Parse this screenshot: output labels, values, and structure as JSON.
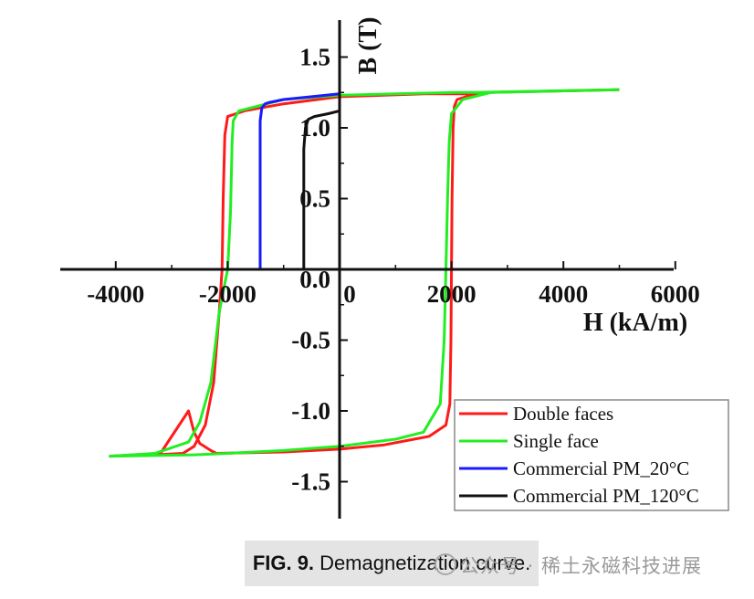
{
  "chart_data": {
    "type": "line",
    "xlabel": "H (kA/m)",
    "ylabel": "B (T)",
    "xlim": [
      -5000,
      6000
    ],
    "ylim": [
      -1.75,
      1.75
    ],
    "x_ticks": [
      "-4000",
      "-2000",
      "0",
      "2000",
      "4000",
      "6000"
    ],
    "y_ticks": [
      "1.5",
      "1.0",
      "0.5",
      "0.0",
      "-0.5",
      "-1.0",
      "-1.5"
    ],
    "legend_position": "bottom-right",
    "series": [
      {
        "name": "Double faces",
        "color": "#ff1a1a",
        "x": [
          2500,
          2100,
          2050,
          2030,
          2010,
          2000,
          1990,
          1970,
          1900,
          1600,
          1200,
          800,
          0,
          -1000,
          -2200,
          -2300,
          -2500,
          -2600,
          -2700,
          -3200,
          -4100,
          -4100,
          -3300,
          -2800,
          -2600,
          -2400,
          -2250,
          -2150,
          -2100,
          -2080,
          -2050,
          -2000,
          -1700,
          -1000,
          0,
          1500,
          2300,
          2600,
          5000
        ],
        "y": [
          1.25,
          1.2,
          1.15,
          1.0,
          0.5,
          0.0,
          -0.5,
          -0.95,
          -1.1,
          -1.18,
          -1.21,
          -1.24,
          -1.27,
          -1.29,
          -1.3,
          -1.28,
          -1.23,
          -1.15,
          -1.0,
          -1.3,
          -1.32,
          -1.32,
          -1.31,
          -1.3,
          -1.25,
          -1.1,
          -0.8,
          -0.3,
          0.0,
          0.5,
          0.95,
          1.08,
          1.12,
          1.17,
          1.22,
          1.24,
          1.24,
          1.25,
          1.27
        ]
      },
      {
        "name": "Single face",
        "color": "#22ee22",
        "x": [
          5000,
          2700,
          2200,
          2000,
          1960,
          1930,
          1900,
          1870,
          1800,
          1500,
          1000,
          0,
          -1000,
          -2000,
          -2600,
          -4100,
          -4100,
          -3300,
          -2700,
          -2500,
          -2300,
          -2150,
          -2000,
          -1950,
          -1920,
          -1900,
          -1800,
          -1500,
          -1000,
          0,
          1000,
          2100,
          2400,
          5000
        ],
        "y": [
          1.27,
          1.25,
          1.2,
          1.1,
          0.9,
          0.5,
          0.0,
          -0.5,
          -0.95,
          -1.15,
          -1.2,
          -1.25,
          -1.28,
          -1.3,
          -1.31,
          -1.32,
          -1.32,
          -1.3,
          -1.22,
          -1.08,
          -0.8,
          -0.3,
          0.0,
          0.4,
          0.9,
          1.05,
          1.12,
          1.15,
          1.2,
          1.23,
          1.24,
          1.25,
          1.25,
          1.27
        ]
      },
      {
        "name": "Commercial PM_20°C",
        "color": "#1a1aff",
        "x": [
          -1420,
          -1420,
          -1390,
          -1330,
          -1250,
          -1000,
          -500,
          0
        ],
        "y": [
          0.0,
          1.05,
          1.14,
          1.17,
          1.18,
          1.2,
          1.22,
          1.24
        ]
      },
      {
        "name": "Commercial PM_120°C",
        "color": "#111111",
        "x": [
          -640,
          -640,
          -610,
          -560,
          -450,
          -200,
          0
        ],
        "y": [
          0.0,
          0.85,
          1.0,
          1.06,
          1.08,
          1.1,
          1.12
        ]
      }
    ]
  },
  "caption": {
    "label": "FIG. 9.",
    "text": "Demagnetization curve."
  },
  "watermark": {
    "text": "公众号 · 稀土永磁科技进展"
  }
}
